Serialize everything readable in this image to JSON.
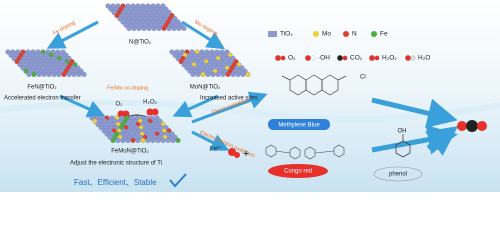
{
  "nodes": [
    {
      "label": "N@TiO₂"
    },
    {
      "label": "FeN@TiO₂",
      "caption": "Accelerated electron transfer"
    },
    {
      "label": "MoN@TiO₂",
      "caption": "Increased active sites"
    },
    {
      "label": "FeMoN@TiO₂",
      "caption": "Adjust the electronic structure of Ti"
    }
  ],
  "arrows": [
    "Fe doping",
    "Mo doping",
    "Fe/Mo co-doping",
    "Direct oxidation",
    "Electro-Fenton oxidation"
  ],
  "species": {
    "o2": "O₂",
    "h2o2": "H₂O₂",
    "fe": "Fe²⁺",
    "plus": "+"
  },
  "legend": [
    "TiO₂",
    "Mo",
    "N",
    "Fe",
    "O₂",
    "·OH",
    "CO₂",
    "H₂O₂",
    "H₂O"
  ],
  "pollutants": [
    "Methylene Blue",
    "Congo red",
    "phenol"
  ],
  "molecule_labels": {
    "oh": "OH",
    "cl": "Cl"
  },
  "footer": "Fast、Efficient、Stable"
}
